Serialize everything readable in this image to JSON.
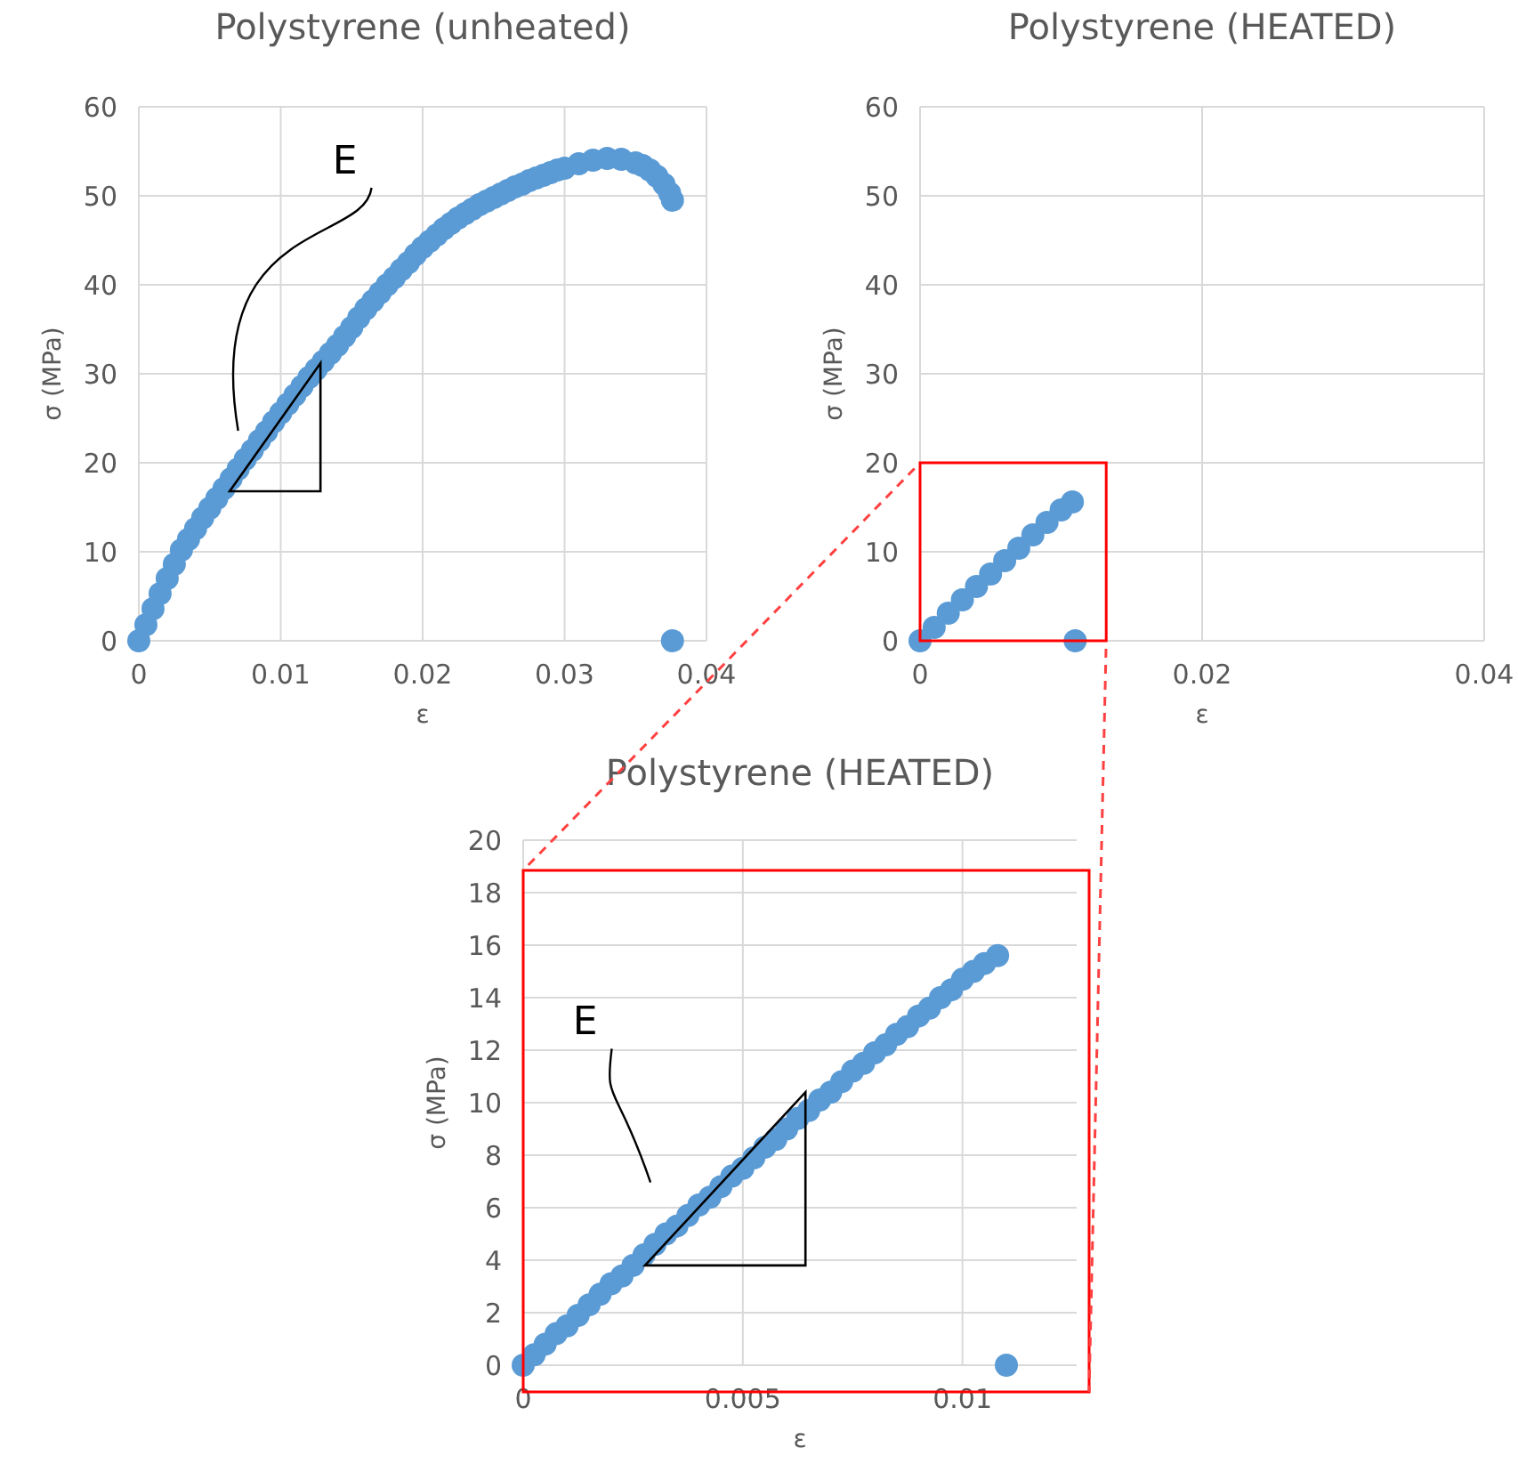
{
  "chart_data": [
    {
      "type": "scatter",
      "title": "Polystyrene (unheated)",
      "xlabel": "ε",
      "ylabel": "σ (MPa)",
      "xlim": [
        0,
        0.04
      ],
      "ylim": [
        0,
        60
      ],
      "xticks": [
        0,
        0.01,
        0.02,
        0.03,
        0.04
      ],
      "yticks": [
        0,
        10,
        20,
        30,
        40,
        50,
        60
      ],
      "grid": true,
      "marker": "circle",
      "annotations": [
        "E"
      ],
      "series": [
        {
          "color": "#5b9bd5",
          "x": [
            0,
            0.0005,
            0.001,
            0.0015,
            0.002,
            0.0025,
            0.003,
            0.0035,
            0.004,
            0.0045,
            0.005,
            0.0055,
            0.006,
            0.0065,
            0.007,
            0.0075,
            0.008,
            0.0085,
            0.009,
            0.0095,
            0.01,
            0.0105,
            0.011,
            0.0115,
            0.012,
            0.0125,
            0.013,
            0.0135,
            0.014,
            0.0145,
            0.015,
            0.0155,
            0.016,
            0.0165,
            0.017,
            0.0175,
            0.018,
            0.0185,
            0.019,
            0.0195,
            0.02,
            0.0205,
            0.021,
            0.0215,
            0.022,
            0.0225,
            0.023,
            0.0235,
            0.024,
            0.0245,
            0.025,
            0.0255,
            0.026,
            0.0265,
            0.027,
            0.0275,
            0.028,
            0.0285,
            0.029,
            0.0295,
            0.03,
            0.031,
            0.032,
            0.033,
            0.034,
            0.035,
            0.0355,
            0.036,
            0.0365,
            0.037,
            0.0374,
            0.0376,
            0.0376
          ],
          "values": [
            0,
            1.8,
            3.6,
            5.3,
            7.0,
            8.6,
            10.2,
            11.4,
            12.6,
            13.8,
            14.9,
            16.0,
            17.1,
            18.2,
            19.3,
            20.4,
            21.4,
            22.5,
            23.5,
            24.6,
            25.6,
            26.6,
            27.6,
            28.6,
            29.6,
            30.5,
            31.4,
            32.3,
            33.2,
            34.2,
            35.2,
            36.3,
            37.3,
            38.2,
            39.1,
            40.0,
            40.8,
            41.7,
            42.5,
            43.4,
            44.2,
            44.9,
            45.6,
            46.3,
            46.9,
            47.5,
            48.0,
            48.5,
            49.0,
            49.4,
            49.8,
            50.2,
            50.6,
            51.0,
            51.3,
            51.7,
            52.0,
            52.3,
            52.6,
            52.9,
            53.1,
            53.6,
            54.0,
            54.2,
            54.1,
            53.7,
            53.4,
            52.9,
            52.2,
            51.3,
            50.3,
            49.5,
            0
          ]
        }
      ]
    },
    {
      "type": "scatter",
      "title": "Polystyrene (HEATED)",
      "xlabel": "ε",
      "ylabel": "σ (MPa)",
      "xlim": [
        0,
        0.04
      ],
      "ylim": [
        0,
        60
      ],
      "xticks": [
        0,
        0.02,
        0.04
      ],
      "yticks": [
        0,
        10,
        20,
        30,
        40,
        50,
        60
      ],
      "grid": true,
      "marker": "circle",
      "series": [
        {
          "color": "#5b9bd5",
          "x": [
            0,
            0.001,
            0.002,
            0.003,
            0.004,
            0.005,
            0.006,
            0.007,
            0.008,
            0.009,
            0.01,
            0.0108,
            0.011
          ],
          "values": [
            0,
            1.5,
            3.1,
            4.6,
            6.1,
            7.5,
            9.0,
            10.4,
            11.9,
            13.3,
            14.7,
            15.6,
            0
          ]
        }
      ]
    },
    {
      "type": "scatter",
      "title": "Polystyrene (HEATED)",
      "xlabel": "ε",
      "ylabel": "σ (MPa)",
      "xlim": [
        0,
        0.0126
      ],
      "ylim": [
        0,
        20
      ],
      "xticks": [
        0,
        0.005,
        0.01
      ],
      "yticks": [
        0,
        2,
        4,
        6,
        8,
        10,
        12,
        14,
        16,
        18,
        20
      ],
      "grid": true,
      "marker": "circle",
      "annotations": [
        "E"
      ],
      "series": [
        {
          "color": "#5b9bd5",
          "x": [
            0,
            0.00025,
            0.0005,
            0.00075,
            0.001,
            0.00125,
            0.0015,
            0.00175,
            0.002,
            0.00225,
            0.0025,
            0.00275,
            0.003,
            0.00325,
            0.0035,
            0.00375,
            0.004,
            0.00425,
            0.0045,
            0.00475,
            0.005,
            0.00525,
            0.0055,
            0.00575,
            0.006,
            0.00625,
            0.0065,
            0.00675,
            0.007,
            0.00725,
            0.0075,
            0.00775,
            0.008,
            0.00825,
            0.0085,
            0.00875,
            0.009,
            0.00925,
            0.0095,
            0.00975,
            0.01,
            0.01025,
            0.0105,
            0.0108,
            0.011
          ],
          "values": [
            0,
            0.4,
            0.8,
            1.2,
            1.5,
            1.9,
            2.3,
            2.7,
            3.1,
            3.4,
            3.8,
            4.2,
            4.6,
            5.0,
            5.3,
            5.7,
            6.1,
            6.4,
            6.8,
            7.2,
            7.5,
            7.9,
            8.3,
            8.6,
            9.0,
            9.4,
            9.7,
            10.1,
            10.4,
            10.8,
            11.2,
            11.5,
            11.9,
            12.2,
            12.6,
            12.9,
            13.3,
            13.6,
            14.0,
            14.3,
            14.7,
            15.0,
            15.3,
            15.6,
            0
          ]
        }
      ]
    }
  ]
}
